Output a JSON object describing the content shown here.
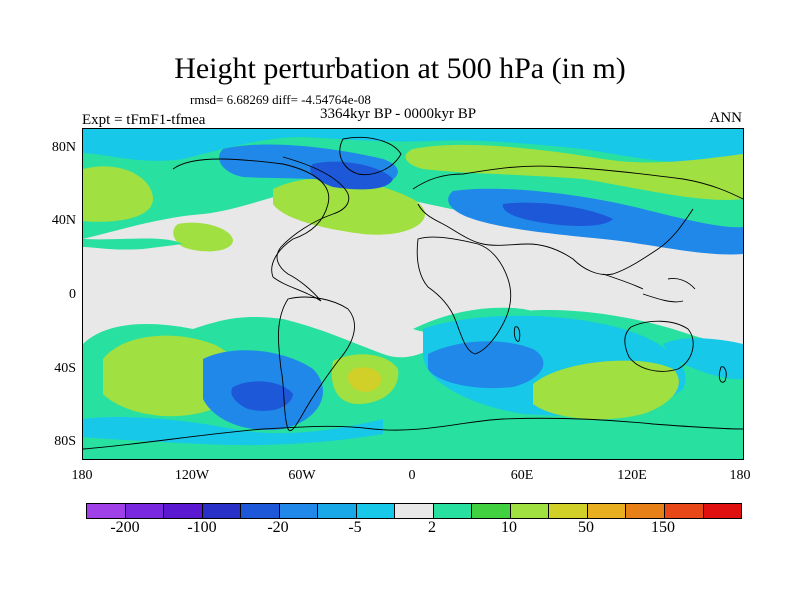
{
  "title": "Height perturbation at 500 hPa (in m)",
  "stats": "rmsd= 6.68269 diff= -4.54764e-08",
  "expt": "Expt = tFmF1-tfmea",
  "period": "3364kyr BP - 0000kyr BP",
  "season": "ANN",
  "lat_labels": [
    "80N",
    "40N",
    "0",
    "40S",
    "80S"
  ],
  "lon_labels": [
    "180",
    "120W",
    "60W",
    "0",
    "60E",
    "120E",
    "180"
  ],
  "colorbar": {
    "colors": [
      "#a040e8",
      "#7a28e0",
      "#5a18d0",
      "#2830c8",
      "#1c58d8",
      "#2088e8",
      "#18a8e8",
      "#18c8e8",
      "#e8e8e8",
      "#28e0a0",
      "#40d040",
      "#a0e040",
      "#d0d028",
      "#e8b020",
      "#e88018",
      "#e84818",
      "#e01010"
    ],
    "labels": [
      "-200",
      "-100",
      "-20",
      "-5",
      "2",
      "10",
      "50",
      "150"
    ]
  },
  "field_colors": {
    "neutral": "#e8e8e8",
    "teal_pos": "#28e0a0",
    "yellow_green": "#a0e040",
    "green": "#40d040",
    "yellow": "#d0d028",
    "cyan_neg": "#18c8e8",
    "light_blue": "#18a8e8",
    "mid_blue": "#2088e8",
    "blue": "#1c58d8",
    "dark_blue": "#2830c8"
  }
}
